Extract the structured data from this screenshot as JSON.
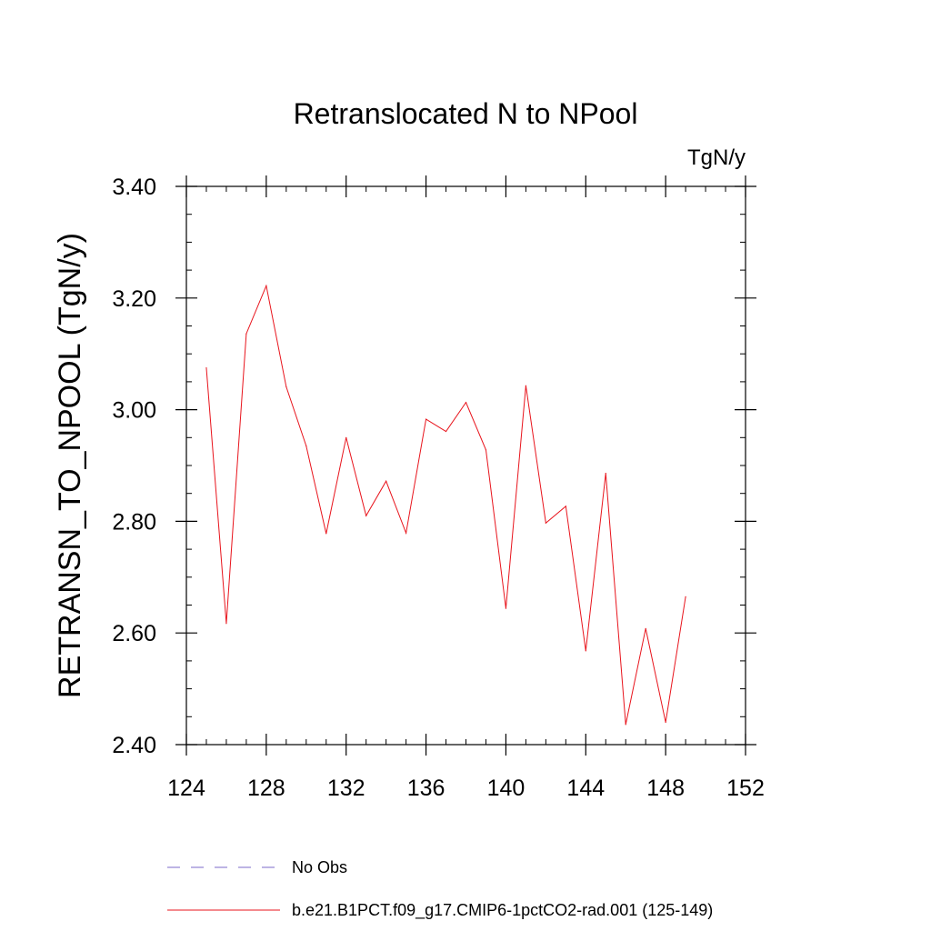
{
  "chart_data": {
    "type": "line",
    "title": "Retranslocated N to NPool",
    "units": "TgN/y",
    "xlabel": "",
    "ylabel": "RETRANSN_TO_NPOOL  (TgN/y)",
    "xlim": [
      124,
      152
    ],
    "ylim": [
      2.4,
      3.4
    ],
    "xticks": [
      124,
      128,
      132,
      136,
      140,
      144,
      148,
      152
    ],
    "xtick_labels": [
      "124",
      "128",
      "132",
      "136",
      "140",
      "144",
      "148",
      "152"
    ],
    "yticks": [
      2.4,
      2.6,
      2.8,
      3.0,
      3.2,
      3.4
    ],
    "ytick_labels": [
      "2.40",
      "2.60",
      "2.80",
      "3.00",
      "3.20",
      "3.40"
    ],
    "x_minor_step": 1,
    "y_minor_step": 0.05,
    "grid": false,
    "legend_position": "bottom-left",
    "series": [
      {
        "name": "No Obs",
        "color": "#7b68c8",
        "dash": "dashed",
        "x": [],
        "values": []
      },
      {
        "name": "b.e21.B1PCT.f09_g17.CMIP6-1pctCO2-rad.001 (125-149)",
        "color": "#e8141c",
        "dash": "solid",
        "x": [
          125,
          126,
          127,
          128,
          129,
          130,
          131,
          132,
          133,
          134,
          135,
          136,
          137,
          138,
          139,
          140,
          141,
          142,
          143,
          144,
          145,
          146,
          147,
          148,
          149
        ],
        "values": [
          3.075,
          2.617,
          3.136,
          3.222,
          3.041,
          2.935,
          2.778,
          2.95,
          2.81,
          2.872,
          2.779,
          2.983,
          2.961,
          3.013,
          2.928,
          2.644,
          3.043,
          2.797,
          2.827,
          2.568,
          2.886,
          2.436,
          2.608,
          2.44,
          2.665
        ]
      }
    ]
  }
}
